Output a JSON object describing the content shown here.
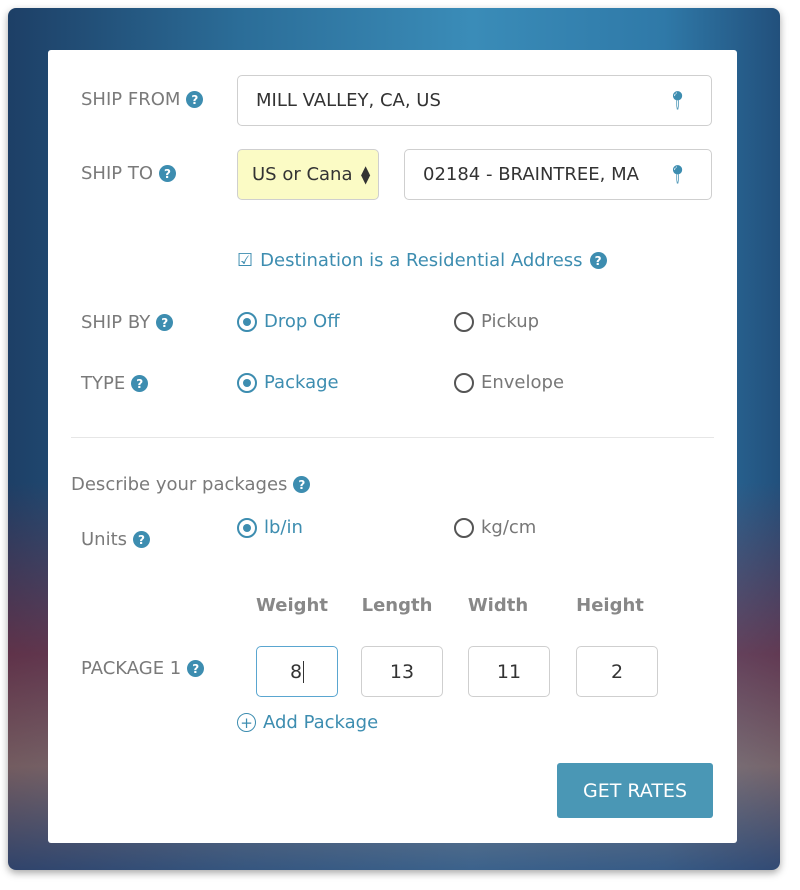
{
  "ship_from": {
    "label": "SHIP FROM",
    "value": "MILL VALLEY, CA, US",
    "icon": "map-pin-icon"
  },
  "ship_to": {
    "label": "SHIP TO",
    "country": "US or Cana",
    "value": "02184 - BRAINTREE, MA",
    "icon": "map-pin-icon"
  },
  "residential": {
    "label": "Destination is a Residential Address",
    "checked": true
  },
  "ship_by": {
    "label": "SHIP BY",
    "options": [
      "Drop Off",
      "Pickup"
    ],
    "selected": "Drop Off"
  },
  "type": {
    "label": "TYPE",
    "options": [
      "Package",
      "Envelope"
    ],
    "selected": "Package"
  },
  "describe": {
    "label": "Describe your packages"
  },
  "units": {
    "label": "Units",
    "options": [
      "lb/in",
      "kg/cm"
    ],
    "selected": "lb/in"
  },
  "columns": [
    "Weight",
    "Length",
    "Width",
    "Height"
  ],
  "package1": {
    "label": "PACKAGE 1",
    "weight": "8",
    "length": "13",
    "width": "11",
    "height": "2"
  },
  "add_package": "Add Package",
  "get_rates": "GET RATES",
  "help_glyph": "?",
  "colors": {
    "accent": "#3d8db0",
    "button": "#4a97b5",
    "select_bg": "#fbfbc5"
  }
}
